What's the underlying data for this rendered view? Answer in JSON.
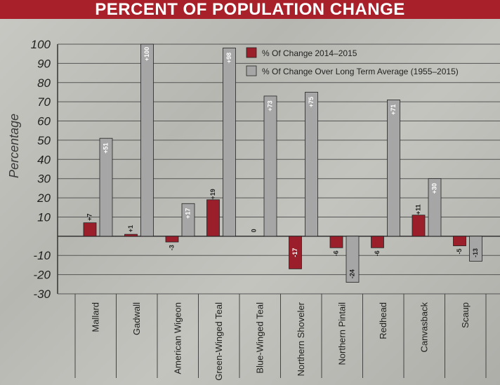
{
  "title": "PERCENT OF POPULATION CHANGE",
  "colors": {
    "banner": "#a8212a",
    "series1": "#9b1f2a",
    "series2": "#a6a6a6"
  },
  "chart_data": {
    "type": "bar",
    "title": "PERCENT OF POPULATION CHANGE",
    "ylabel": "Percentage",
    "xlabel": "",
    "ylim": [
      -30,
      100
    ],
    "yticks": [
      100,
      90,
      80,
      70,
      60,
      50,
      40,
      30,
      20,
      10,
      -10,
      -20,
      -30
    ],
    "legend_position": "top-right",
    "grid": true,
    "categories": [
      "Mallard",
      "Gadwall",
      "American Wigeon",
      "Green-Winged Teal",
      "Blue-Winged Teal",
      "Northern Shoveler",
      "Northern Pintail",
      "Redhead",
      "Canvasback",
      "Scaup"
    ],
    "series": [
      {
        "name": "% Of Change 2014–2015",
        "values": [
          7,
          1,
          -3,
          19,
          0,
          -17,
          -6,
          -6,
          11,
          -5
        ],
        "labels": [
          "+7",
          "+1",
          "-3",
          "+19",
          "0",
          "-17",
          "-6",
          "-6",
          "+11",
          "-5"
        ]
      },
      {
        "name": "% Of Change Over Long Term Average (1955–2015)",
        "values": [
          51,
          100,
          17,
          98,
          73,
          75,
          -24,
          71,
          30,
          -13
        ],
        "labels": [
          "+51",
          "+100",
          "+17",
          "+98",
          "+73",
          "+75",
          "-24",
          "+71",
          "+30",
          "-13"
        ]
      }
    ]
  }
}
